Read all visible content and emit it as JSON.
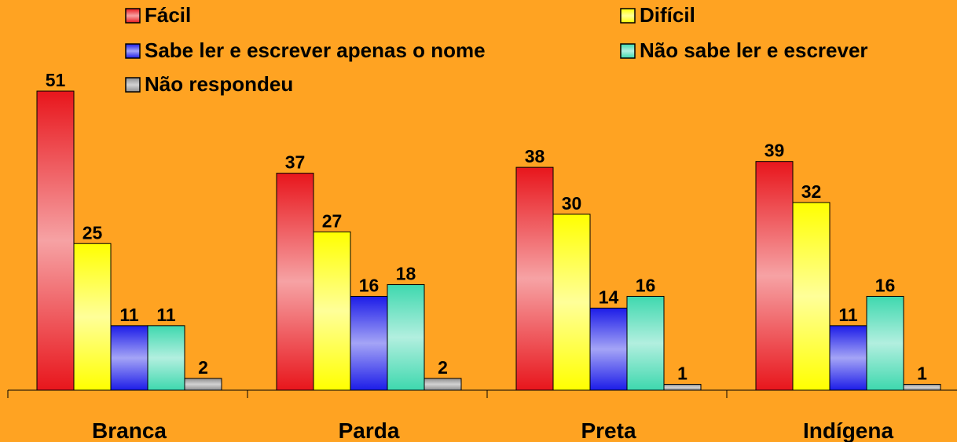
{
  "chart_data": {
    "type": "bar",
    "categories": [
      "Branca",
      "Parda",
      "Preta",
      "Indígena"
    ],
    "series": [
      {
        "name": "Fácil",
        "color": "#E8161C",
        "values": [
          51,
          37,
          38,
          39
        ]
      },
      {
        "name": "Difícil",
        "color": "#FFFF00",
        "values": [
          25,
          27,
          30,
          32
        ]
      },
      {
        "name": "Sabe ler e escrever apenas o nome",
        "color": "#1C1CE8",
        "values": [
          11,
          16,
          14,
          11
        ]
      },
      {
        "name": "Não sabe ler e escrever",
        "color": "#3ED8AE",
        "values": [
          11,
          18,
          16,
          16
        ]
      },
      {
        "name": "Não respondeu",
        "color": "#8E8E8E",
        "values": [
          2,
          2,
          1,
          1
        ]
      }
    ]
  }
}
